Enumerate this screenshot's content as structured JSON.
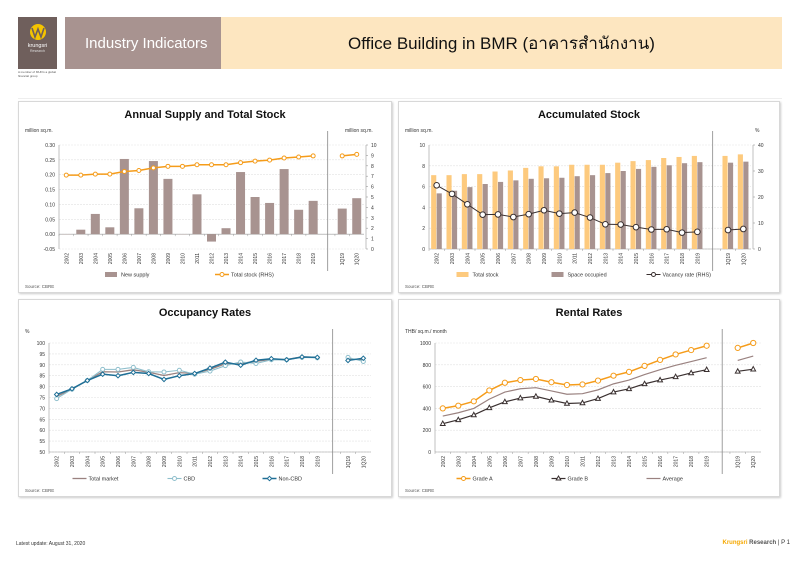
{
  "header": {
    "section_label": "Industry Indicators",
    "title": "Office Building in BMR (อาคารสำนักงาน)",
    "logo_name": "krungsri",
    "logo_sub": "Research",
    "logo_member": "A member of MUFG a global financial group"
  },
  "footer": {
    "latest_update": "Latest update: August 31, 2020",
    "brand": "Krungsri",
    "research": "Research",
    "page": "|  P 1"
  },
  "colors": {
    "bar_brown": "#a89390",
    "orange": "#f59c1a",
    "light_orange": "#fdca7e",
    "dark_line": "#3a3030",
    "teal": "#1f6f96",
    "light_teal": "#8fbfcc",
    "avg_brown": "#9a8280"
  },
  "chart_data": [
    {
      "id": "supply",
      "type": "bar",
      "title": "Annual Supply and Total Stock",
      "ylabel": "million sq.m.",
      "y2label": "million sq.m.",
      "source": "Source: CBRE",
      "categories": [
        "2002",
        "2003",
        "2004",
        "2005",
        "2006",
        "2007",
        "2008",
        "2009",
        "2010",
        "2011",
        "2012",
        "2013",
        "2014",
        "2015",
        "2016",
        "2017",
        "2018",
        "2019",
        "1Q19",
        "1Q20"
      ],
      "ylim": [
        -0.05,
        0.3
      ],
      "yticks": [
        "0.30",
        "0.25",
        "0.20",
        "0.15",
        "0.10",
        "0.05",
        "0.00",
        "-0.05"
      ],
      "y2lim": [
        0,
        10
      ],
      "y2ticks": [
        "10",
        "9",
        "8",
        "7",
        "6",
        "5",
        "4",
        "3",
        "2",
        "1",
        "0"
      ],
      "series": [
        {
          "name": "New supply",
          "kind": "bar",
          "axis": "left",
          "values": [
            0.0,
            0.015,
            0.068,
            0.023,
            0.253,
            0.087,
            0.246,
            0.186,
            0.0,
            0.134,
            -0.025,
            0.02,
            0.209,
            0.125,
            0.105,
            0.219,
            0.082,
            0.112,
            0.086,
            0.121
          ]
        },
        {
          "name": "Total stock (RHS)",
          "kind": "line",
          "axis": "right",
          "values": [
            7.1,
            7.1,
            7.2,
            7.2,
            7.45,
            7.55,
            7.8,
            7.95,
            7.95,
            8.1,
            8.1,
            8.1,
            8.3,
            8.45,
            8.55,
            8.75,
            8.85,
            8.95,
            8.95,
            9.1
          ]
        }
      ],
      "legend": [
        "New supply",
        "Total stock (RHS)"
      ],
      "legend_position": "bottom",
      "grid": true
    },
    {
      "id": "accum",
      "type": "bar",
      "title": "Accumulated Stock",
      "ylabel": "million sq.m.",
      "y2label": "%",
      "source": "Source: CBRE",
      "categories": [
        "2002",
        "2003",
        "2004",
        "2005",
        "2006",
        "2007",
        "2008",
        "2009",
        "2010",
        "2011",
        "2012",
        "2013",
        "2014",
        "2015",
        "2016",
        "2017",
        "2018",
        "2019",
        "1Q19",
        "1Q20"
      ],
      "ylim": [
        0,
        10
      ],
      "yticks": [
        "10",
        "8",
        "6",
        "4",
        "2",
        "0"
      ],
      "y2lim": [
        0,
        40
      ],
      "y2ticks": [
        "40",
        "30",
        "20",
        "10",
        "0"
      ],
      "series": [
        {
          "name": "Total stock",
          "kind": "bar",
          "axis": "left",
          "values": [
            7.1,
            7.1,
            7.2,
            7.2,
            7.45,
            7.55,
            7.8,
            7.95,
            7.95,
            8.1,
            8.1,
            8.1,
            8.3,
            8.45,
            8.55,
            8.75,
            8.85,
            8.95,
            8.95,
            9.1
          ]
        },
        {
          "name": "Space occupied",
          "kind": "bar",
          "axis": "left",
          "values": [
            5.35,
            5.6,
            5.95,
            6.25,
            6.45,
            6.6,
            6.75,
            6.8,
            6.85,
            7.0,
            7.1,
            7.3,
            7.5,
            7.7,
            7.9,
            8.05,
            8.25,
            8.35,
            8.3,
            8.4
          ]
        },
        {
          "name": "Vacancy rate (RHS)",
          "kind": "line",
          "axis": "right",
          "values": [
            24.5,
            21.2,
            17.2,
            13.2,
            13.3,
            12.3,
            13.4,
            14.9,
            13.6,
            14.0,
            12.1,
            9.5,
            9.4,
            8.4,
            7.5,
            7.6,
            6.3,
            6.6,
            7.3,
            7.7
          ]
        }
      ],
      "legend": [
        "Total stock",
        "Space occupied",
        "Vacancy rate (RHS)"
      ],
      "legend_position": "bottom",
      "grid": true
    },
    {
      "id": "occupancy",
      "type": "line",
      "title": "Occupancy Rates",
      "ylabel": "%",
      "source": "Source: CBRE",
      "categories": [
        "2002",
        "2003",
        "2004",
        "2005",
        "2006",
        "2007",
        "2008",
        "2009",
        "2010",
        "2011",
        "2012",
        "2013",
        "2014",
        "2015",
        "2016",
        "2017",
        "2018",
        "2019",
        "1Q19",
        "1Q20"
      ],
      "ylim": [
        50,
        100
      ],
      "yticks": [
        "100",
        "95",
        "90",
        "85",
        "80",
        "75",
        "70",
        "65",
        "60",
        "55",
        "50"
      ],
      "series": [
        {
          "name": "Total market",
          "values": [
            75.5,
            78.8,
            82.8,
            86.8,
            86.7,
            87.7,
            86.6,
            85.1,
            86.4,
            86.0,
            87.9,
            90.5,
            90.6,
            91.6,
            92.5,
            92.4,
            93.7,
            93.4,
            92.7,
            92.3
          ]
        },
        {
          "name": "CBD",
          "values": [
            74.5,
            78.8,
            82.8,
            87.9,
            87.9,
            88.8,
            86.8,
            86.7,
            87.5,
            85.7,
            87.1,
            89.6,
            91.3,
            90.6,
            92.3,
            92.3,
            93.4,
            93.2,
            93.4,
            91.5
          ]
        },
        {
          "name": "Non-CBD",
          "values": [
            76.4,
            79.0,
            82.8,
            85.7,
            85.0,
            86.5,
            86.0,
            83.3,
            85.0,
            86.0,
            88.5,
            91.2,
            89.8,
            92.1,
            92.8,
            92.3,
            93.6,
            93.4,
            92.0,
            93.0
          ]
        }
      ],
      "legend": [
        "Total market",
        "CBD",
        "Non-CBD"
      ],
      "legend_position": "bottom",
      "grid": true
    },
    {
      "id": "rental",
      "type": "line",
      "title": "Rental Rates",
      "ylabel": "THB/ sq.m./ month",
      "source": "Source: CBRE",
      "categories": [
        "2002",
        "2003",
        "2004",
        "2005",
        "2006",
        "2007",
        "2008",
        "2009",
        "2010",
        "2011",
        "2012",
        "2013",
        "2014",
        "2015",
        "2016",
        "2017",
        "2018",
        "2019",
        "1Q19",
        "1Q20"
      ],
      "ylim": [
        0,
        1000
      ],
      "yticks": [
        "1000",
        "800",
        "600",
        "400",
        "200",
        "0"
      ],
      "series": [
        {
          "name": "Grade A",
          "values": [
            400,
            425,
            465,
            565,
            635,
            660,
            670,
            640,
            615,
            620,
            655,
            700,
            735,
            790,
            845,
            895,
            935,
            975,
            955,
            1000
          ]
        },
        {
          "name": "Grade B",
          "values": [
            260,
            295,
            340,
            405,
            460,
            495,
            510,
            475,
            445,
            450,
            490,
            550,
            580,
            625,
            660,
            690,
            725,
            755,
            740,
            760
          ]
        },
        {
          "name": "Average",
          "values": [
            330,
            360,
            400,
            485,
            550,
            580,
            590,
            560,
            530,
            535,
            570,
            625,
            660,
            710,
            755,
            795,
            830,
            865,
            840,
            880
          ]
        }
      ],
      "legend": [
        "Grade A",
        "Grade B",
        "Average"
      ],
      "legend_position": "bottom",
      "grid": true
    }
  ]
}
